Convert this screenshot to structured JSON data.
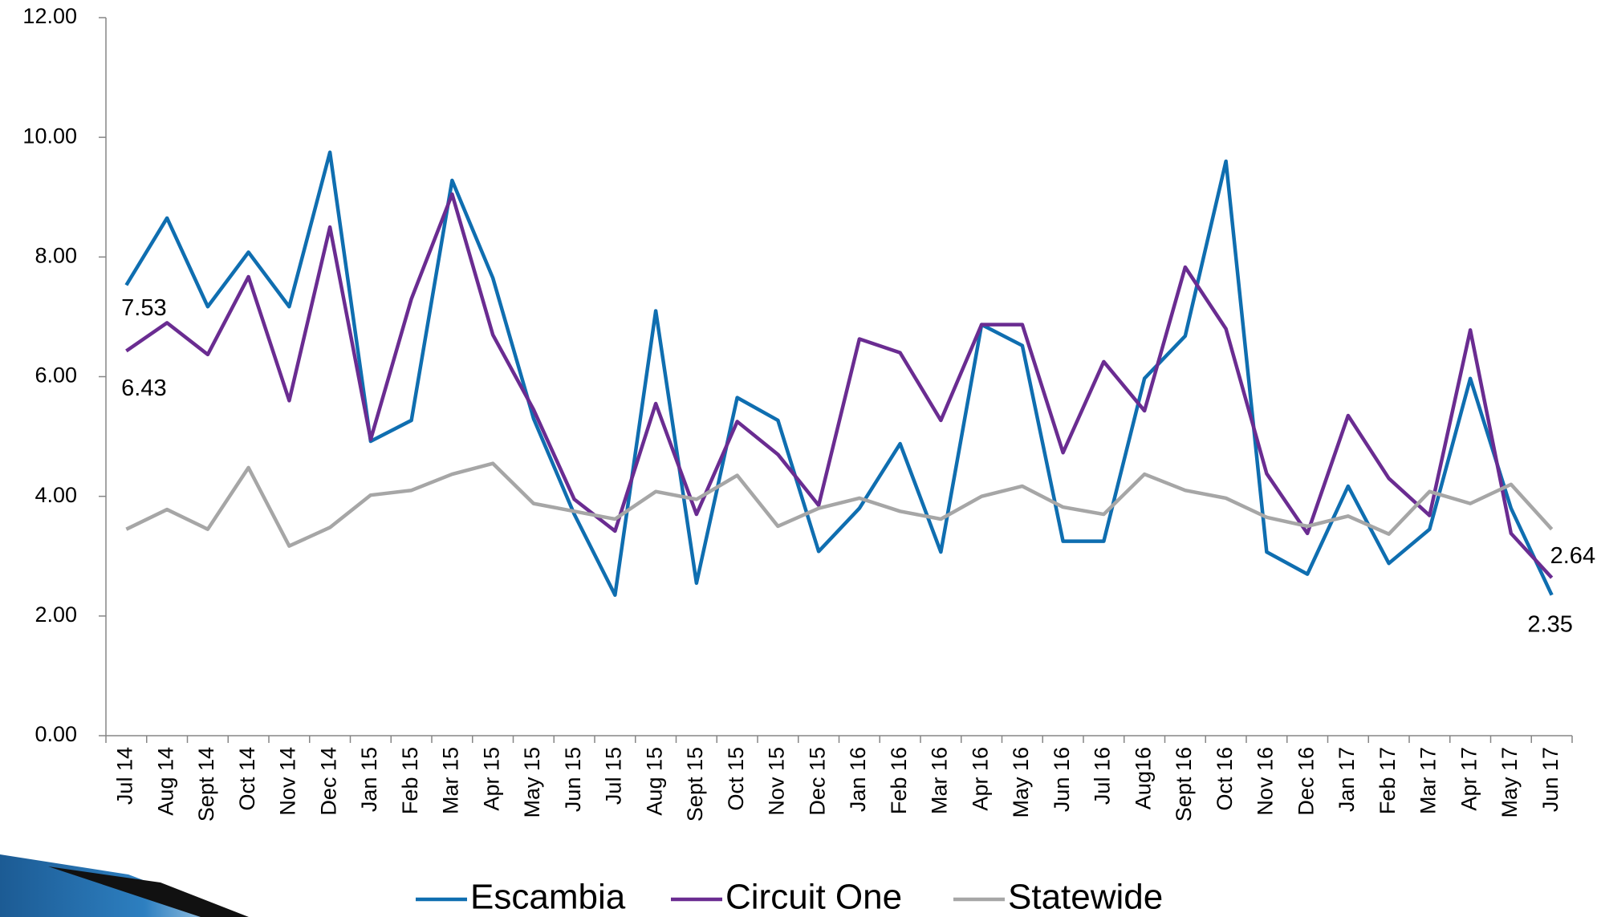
{
  "chart_data": {
    "type": "line",
    "categories": [
      "Jul 14",
      "Aug 14",
      "Sept 14",
      "Oct 14",
      "Nov 14",
      "Dec 14",
      "Jan 15",
      "Feb 15",
      "Mar 15",
      "Apr 15",
      "May 15",
      "Jun 15",
      "Jul 15",
      "Aug 15",
      "Sept 15",
      "Oct 15",
      "Nov 15",
      "Dec 15",
      "Jan 16",
      "Feb 16",
      "Mar 16",
      "Apr 16",
      "May 16",
      "Jun 16",
      "Jul 16",
      "Aug16",
      "Sept 16",
      "Oct 16",
      "Nov 16",
      "Dec 16",
      "Jan 17",
      "Feb 17",
      "Mar 17",
      "Apr 17",
      "May 17",
      "Jun 17"
    ],
    "series": [
      {
        "name": "Escambia",
        "color": "#0f6eb0",
        "values": [
          7.53,
          8.65,
          7.17,
          8.08,
          7.17,
          9.75,
          4.92,
          5.27,
          9.28,
          7.65,
          5.3,
          3.7,
          2.35,
          7.1,
          2.55,
          5.65,
          5.27,
          3.08,
          3.8,
          4.88,
          3.07,
          6.87,
          6.52,
          3.25,
          3.25,
          5.97,
          6.68,
          9.6,
          3.07,
          2.7,
          4.17,
          2.88,
          3.45,
          5.97,
          3.8,
          2.35
        ],
        "value_labels": [
          "7.53",
          null,
          null,
          null,
          null,
          null,
          null,
          null,
          null,
          null,
          null,
          null,
          null,
          null,
          null,
          null,
          null,
          null,
          null,
          null,
          null,
          null,
          null,
          null,
          null,
          null,
          null,
          null,
          null,
          null,
          null,
          null,
          null,
          null,
          null,
          "2.35"
        ]
      },
      {
        "name": "Circuit One",
        "color": "#6a2c91",
        "values": [
          6.43,
          6.9,
          6.37,
          7.67,
          5.6,
          8.5,
          4.95,
          7.3,
          9.05,
          6.7,
          5.45,
          3.95,
          3.42,
          5.55,
          3.7,
          5.25,
          4.7,
          3.85,
          6.63,
          6.4,
          5.27,
          6.87,
          6.87,
          4.73,
          6.25,
          5.43,
          7.83,
          6.8,
          4.38,
          3.38,
          5.35,
          4.3,
          3.68,
          6.78,
          3.38,
          2.64
        ],
        "value_labels": [
          "6.43",
          null,
          null,
          null,
          null,
          null,
          null,
          null,
          null,
          null,
          null,
          null,
          null,
          null,
          null,
          null,
          null,
          null,
          null,
          null,
          null,
          null,
          null,
          null,
          null,
          null,
          null,
          null,
          null,
          null,
          null,
          null,
          null,
          null,
          null,
          "2.64"
        ]
      },
      {
        "name": "Statewide",
        "color": "#a6a6a6",
        "values": [
          3.45,
          3.78,
          3.45,
          4.48,
          3.17,
          3.48,
          4.02,
          4.1,
          4.37,
          4.55,
          3.88,
          3.75,
          3.62,
          4.08,
          3.95,
          4.35,
          3.5,
          3.8,
          3.97,
          3.75,
          3.62,
          4.0,
          4.17,
          3.82,
          3.7,
          4.37,
          4.1,
          3.97,
          3.65,
          3.5,
          3.67,
          3.37,
          4.08,
          3.88,
          4.2,
          3.45
        ]
      }
    ],
    "ylim": [
      0,
      12
    ],
    "yticks": [
      {
        "value": 0,
        "label": "0.00"
      },
      {
        "value": 2,
        "label": "2.00"
      },
      {
        "value": 4,
        "label": "4.00"
      },
      {
        "value": 6,
        "label": "6.00"
      },
      {
        "value": 8,
        "label": "8.00"
      },
      {
        "value": 10,
        "label": "10.00"
      },
      {
        "value": 12,
        "label": "12.00"
      }
    ],
    "legend": "bottom"
  }
}
